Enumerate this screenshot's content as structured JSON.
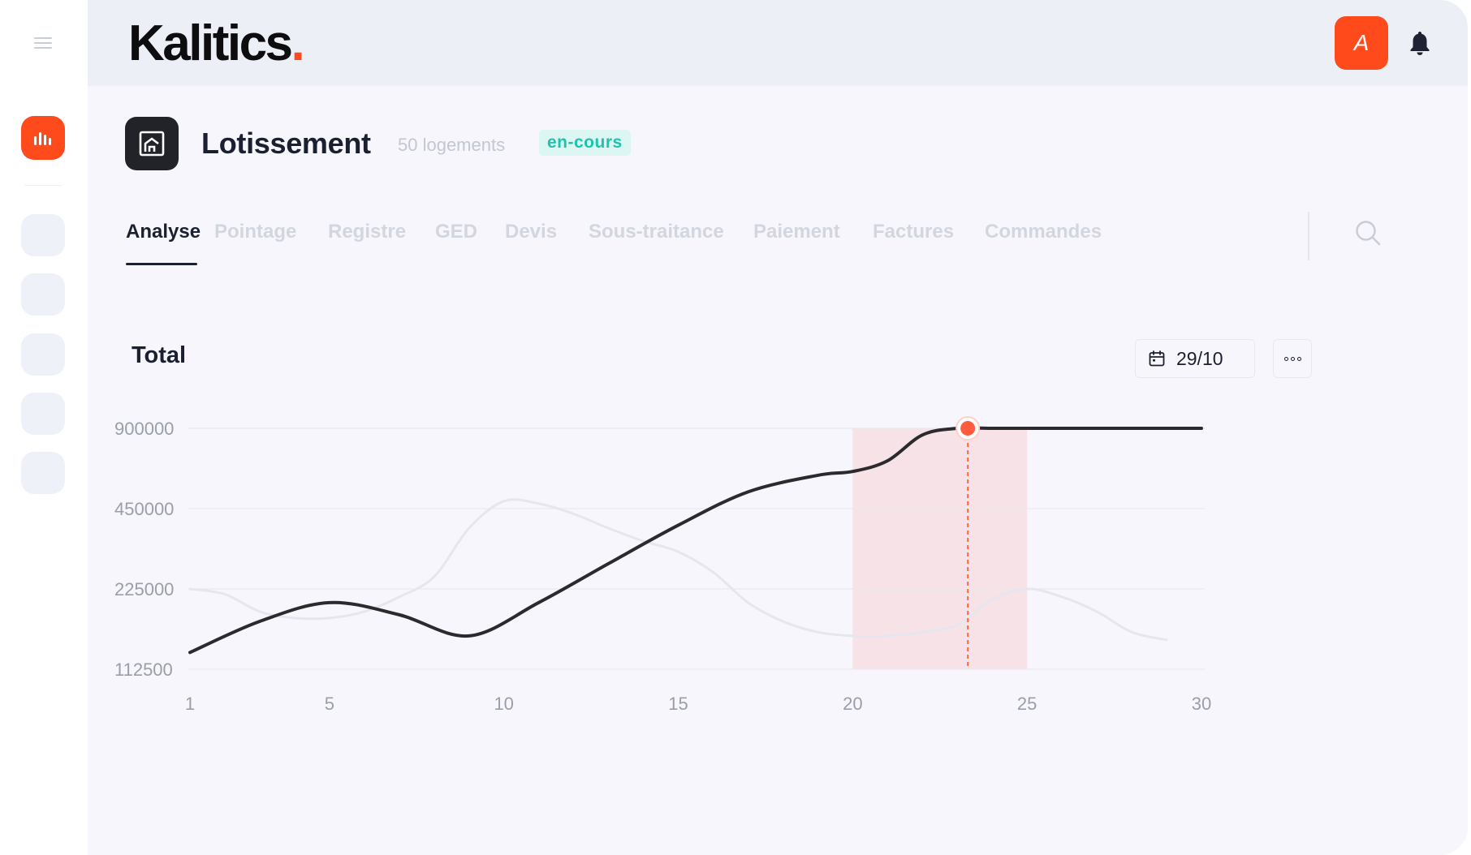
{
  "app": {
    "logo_text": "Kalitics",
    "logo_dot": ".",
    "brand_color": "#ff4a1c",
    "avatar_initial": "A"
  },
  "sidebar": {
    "icons": [
      "menu-icon",
      "bar-chart-icon"
    ]
  },
  "project": {
    "title": "Lotissement",
    "subtitle": "50 logements",
    "status": "en-cours",
    "status_color": "#1dc3ad"
  },
  "tabs": [
    {
      "label": "Analyse",
      "active": true
    },
    {
      "label": "Pointage",
      "active": false
    },
    {
      "label": "Registre",
      "active": false
    },
    {
      "label": "GED",
      "active": false
    },
    {
      "label": "Devis",
      "active": false
    },
    {
      "label": "Sous-traitance",
      "active": false
    },
    {
      "label": "Paiement",
      "active": false
    },
    {
      "label": "Factures",
      "active": false
    },
    {
      "label": "Commandes",
      "active": false
    }
  ],
  "chart_panel": {
    "title": "Total",
    "date_label": "29/10"
  },
  "chart_data": {
    "type": "line",
    "title": "Total",
    "xlabel": "",
    "ylabel": "",
    "x_ticks": [
      1,
      5,
      10,
      15,
      20,
      25,
      30
    ],
    "y_ticks": [
      "900000",
      "450000",
      "225000",
      "112500"
    ],
    "y_scale": "categorical-log",
    "grid": true,
    "highlight_range": [
      20,
      25
    ],
    "highlight_color": "#f7e3e7",
    "marker": {
      "x": 23.3,
      "y": 900000
    },
    "series": [
      {
        "emphasis": "primary",
        "color": "#2b2a2d",
        "x": [
          1,
          3,
          5,
          7,
          9,
          11,
          13,
          15,
          17,
          19,
          20,
          21,
          22,
          23,
          24,
          26,
          28,
          30
        ],
        "y": [
          130000,
          170000,
          200000,
          180000,
          150000,
          200000,
          280000,
          390000,
          520000,
          600000,
          620000,
          680000,
          850000,
          900000,
          900000,
          900000,
          900000,
          900000
        ]
      },
      {
        "emphasis": "secondary",
        "color": "#e6e6ee",
        "x": [
          1,
          2,
          3,
          4,
          5,
          6,
          7,
          8,
          9,
          10,
          11,
          12,
          13,
          14,
          15,
          16,
          17,
          18,
          19,
          20,
          21,
          22,
          23,
          24,
          25,
          26,
          27,
          28,
          29
        ],
        "y": [
          225000,
          215000,
          185000,
          175000,
          175000,
          185000,
          210000,
          250000,
          380000,
          480000,
          470000,
          430000,
          380000,
          340000,
          310000,
          260000,
          200000,
          170000,
          155000,
          150000,
          150000,
          155000,
          165000,
          205000,
          225000,
          210000,
          185000,
          155000,
          145000
        ]
      }
    ]
  }
}
